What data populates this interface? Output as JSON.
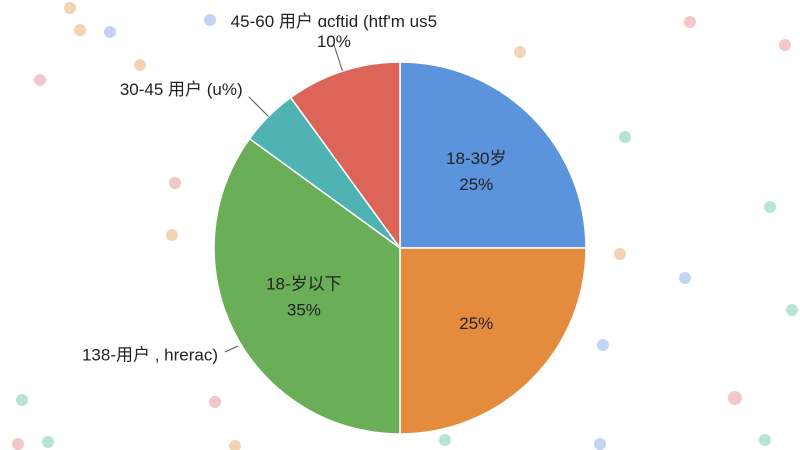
{
  "chart_data": {
    "type": "pie",
    "categories": [
      "18-30岁",
      null,
      "18-岁以下",
      "30-45 用户 (u%)",
      "45-60 用户 ɑcftid (htf'm us5"
    ],
    "values": [
      25,
      25,
      35,
      5,
      10
    ],
    "value_labels": [
      "25%",
      "25%",
      "35%",
      null,
      "10%"
    ],
    "colors": [
      "#5b93dc",
      "#e58b3e",
      "#6aae57",
      "#4fb3b3",
      "#dc6459"
    ],
    "annotations": [
      "138-用户 , hrerac)"
    ]
  }
}
